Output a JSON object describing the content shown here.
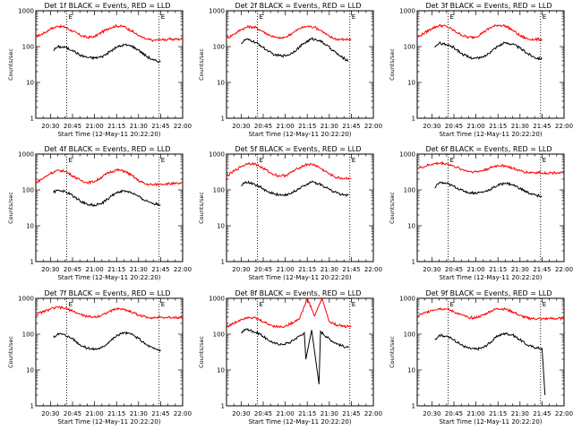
{
  "chart_data": {
    "type": "line",
    "layout": "3x3 grid",
    "shared": {
      "xlabel": "Start Time (12-May-11 20:22:20)",
      "ylabel": "Counts/sec",
      "x_tick_labels": [
        "20:30",
        "20:45",
        "21:00",
        "21:15",
        "21:30",
        "21:45",
        "22:00"
      ],
      "x_ticks_min": [
        30,
        45,
        60,
        75,
        90,
        105,
        120
      ],
      "xlim_min": [
        20,
        120
      ],
      "y_scale": "log",
      "ylim": [
        1,
        1000
      ],
      "y_tick_labels": [
        "1",
        "10",
        "100",
        "1000"
      ],
      "y_ticks": [
        1,
        10,
        100,
        1000
      ],
      "series_colors": {
        "events": "#000000",
        "lld": "#ff0000"
      },
      "markers": {
        "left_label": "E",
        "right_label": "E",
        "left_x_min": 41,
        "right_x_min": 104
      }
    },
    "panels": [
      {
        "title": "Det 1f BLACK = Events, RED = LLD",
        "lld": {
          "x": [
            20,
            25,
            30,
            35,
            40,
            45,
            50,
            55,
            60,
            65,
            70,
            75,
            80,
            85,
            90,
            95,
            100,
            105,
            110,
            115,
            120
          ],
          "values": [
            190,
            230,
            310,
            370,
            350,
            270,
            210,
            180,
            190,
            250,
            330,
            380,
            360,
            280,
            200,
            160,
            150,
            155,
            158,
            160,
            162
          ]
        },
        "events": {
          "x": [
            32,
            35,
            40,
            45,
            50,
            55,
            60,
            65,
            70,
            75,
            80,
            85,
            90,
            95,
            100,
            105
          ],
          "values": [
            80,
            100,
            95,
            80,
            58,
            50,
            48,
            52,
            70,
            95,
            112,
            105,
            80,
            55,
            42,
            38
          ]
        }
      },
      {
        "title": "Det 2f BLACK = Events, RED = LLD",
        "lld": {
          "x": [
            20,
            25,
            30,
            35,
            40,
            45,
            50,
            55,
            60,
            65,
            70,
            75,
            80,
            85,
            90,
            95,
            100,
            105
          ],
          "values": [
            170,
            220,
            300,
            360,
            340,
            260,
            200,
            170,
            180,
            240,
            320,
            370,
            350,
            270,
            190,
            160,
            160,
            158
          ]
        },
        "events": {
          "x": [
            30,
            33,
            38,
            43,
            48,
            53,
            58,
            63,
            68,
            73,
            78,
            83,
            88,
            93,
            98,
            103
          ],
          "values": [
            120,
            160,
            140,
            110,
            75,
            58,
            55,
            60,
            85,
            125,
            165,
            150,
            110,
            75,
            52,
            40
          ]
        }
      },
      {
        "title": "Det 3f BLACK = Events, RED = LLD",
        "lld": {
          "x": [
            20,
            25,
            30,
            35,
            40,
            45,
            50,
            55,
            60,
            65,
            70,
            75,
            80,
            85,
            90,
            95,
            100,
            105
          ],
          "values": [
            180,
            240,
            320,
            390,
            370,
            280,
            210,
            180,
            185,
            250,
            340,
            400,
            380,
            290,
            200,
            165,
            158,
            160
          ]
        },
        "events": {
          "x": [
            32,
            35,
            40,
            45,
            50,
            55,
            60,
            65,
            70,
            75,
            80,
            85,
            90,
            95,
            100,
            105
          ],
          "values": [
            95,
            125,
            115,
            95,
            65,
            50,
            47,
            50,
            72,
            105,
            128,
            118,
            90,
            65,
            50,
            45
          ]
        }
      },
      {
        "title": "Det 4f BLACK = Events, RED = LLD",
        "lld": {
          "x": [
            20,
            25,
            30,
            35,
            40,
            45,
            50,
            55,
            60,
            65,
            70,
            75,
            80,
            85,
            90,
            95,
            100,
            105,
            110,
            115,
            120
          ],
          "values": [
            160,
            210,
            290,
            350,
            330,
            250,
            190,
            160,
            170,
            230,
            310,
            360,
            340,
            260,
            180,
            145,
            140,
            145,
            150,
            150,
            152
          ]
        },
        "events": {
          "x": [
            32,
            35,
            40,
            45,
            50,
            55,
            60,
            65,
            70,
            75,
            80,
            85,
            90,
            95,
            100,
            105
          ],
          "values": [
            85,
            100,
            90,
            70,
            50,
            40,
            38,
            42,
            60,
            85,
            95,
            85,
            65,
            50,
            42,
            38
          ]
        }
      },
      {
        "title": "Det 5f BLACK = Events, RED = LLD",
        "lld": {
          "x": [
            20,
            25,
            30,
            35,
            40,
            45,
            50,
            55,
            60,
            65,
            70,
            75,
            80,
            85,
            90,
            95,
            100,
            105
          ],
          "values": [
            240,
            330,
            450,
            560,
            520,
            400,
            300,
            250,
            250,
            320,
            430,
            520,
            500,
            380,
            280,
            220,
            210,
            212
          ]
        },
        "events": {
          "x": [
            30,
            33,
            38,
            43,
            48,
            53,
            58,
            63,
            68,
            73,
            78,
            83,
            88,
            93,
            98,
            103
          ],
          "values": [
            130,
            170,
            150,
            120,
            90,
            75,
            72,
            78,
            100,
            135,
            165,
            150,
            115,
            90,
            75,
            70
          ]
        }
      },
      {
        "title": "Det 6f BLACK = Events, RED = LLD",
        "lld": {
          "x": [
            20,
            25,
            30,
            35,
            40,
            45,
            50,
            55,
            60,
            65,
            70,
            75,
            80,
            85,
            90,
            95,
            100,
            105,
            110,
            115,
            120
          ],
          "values": [
            400,
            450,
            520,
            560,
            540,
            460,
            380,
            330,
            320,
            350,
            420,
            480,
            470,
            400,
            340,
            310,
            305,
            300,
            300,
            302,
            305
          ]
        },
        "events": {
          "x": [
            32,
            35,
            40,
            45,
            50,
            55,
            60,
            65,
            70,
            75,
            80,
            85,
            90,
            95,
            100,
            105
          ],
          "values": [
            110,
            160,
            150,
            125,
            100,
            85,
            82,
            88,
            105,
            135,
            155,
            140,
            110,
            85,
            72,
            66
          ]
        }
      },
      {
        "title": "Det 7f BLACK = Events, RED = LLD",
        "lld": {
          "x": [
            20,
            25,
            30,
            35,
            40,
            45,
            50,
            55,
            60,
            65,
            70,
            75,
            80,
            85,
            90,
            95,
            100,
            105,
            110,
            115,
            120
          ],
          "values": [
            350,
            420,
            500,
            560,
            530,
            440,
            360,
            310,
            300,
            340,
            430,
            510,
            500,
            420,
            340,
            300,
            290,
            290,
            292,
            295,
            300
          ]
        },
        "events": {
          "x": [
            32,
            35,
            40,
            45,
            50,
            55,
            60,
            65,
            70,
            75,
            80,
            85,
            90,
            95,
            100,
            105
          ],
          "values": [
            80,
            105,
            95,
            75,
            52,
            40,
            38,
            42,
            62,
            90,
            110,
            100,
            75,
            52,
            40,
            36
          ]
        }
      },
      {
        "title": "Det 8f BLACK = Events, RED = LLD",
        "lld": {
          "x": [
            20,
            25,
            30,
            35,
            40,
            45,
            50,
            55,
            60,
            65,
            70,
            75,
            80,
            85,
            90,
            95,
            100,
            105
          ],
          "values": [
            160,
            200,
            260,
            300,
            280,
            220,
            180,
            160,
            165,
            210,
            280,
            1000,
            320,
            1000,
            220,
            180,
            165,
            165
          ]
        },
        "events": {
          "x": [
            30,
            33,
            38,
            43,
            48,
            53,
            58,
            63,
            68,
            73,
            74,
            78,
            83,
            84,
            88,
            93,
            98,
            103
          ],
          "values": [
            110,
            140,
            120,
            100,
            70,
            55,
            52,
            58,
            80,
            110,
            20,
            130,
            4,
            120,
            85,
            60,
            48,
            42
          ]
        }
      },
      {
        "title": "Det 9f BLACK = Events, RED = LLD",
        "lld": {
          "x": [
            20,
            25,
            30,
            35,
            40,
            45,
            50,
            55,
            60,
            65,
            70,
            75,
            80,
            85,
            90,
            95,
            100,
            105,
            110,
            115,
            120
          ],
          "values": [
            320,
            390,
            470,
            520,
            500,
            420,
            340,
            290,
            290,
            340,
            440,
            520,
            500,
            420,
            330,
            280,
            270,
            268,
            270,
            272,
            275
          ]
        },
        "events": {
          "x": [
            32,
            35,
            40,
            45,
            50,
            55,
            60,
            65,
            70,
            75,
            80,
            85,
            90,
            95,
            100,
            105,
            106,
            107
          ],
          "values": [
            70,
            95,
            88,
            70,
            50,
            40,
            38,
            42,
            60,
            90,
            105,
            95,
            70,
            50,
            42,
            40,
            10,
            2
          ]
        }
      }
    ]
  }
}
